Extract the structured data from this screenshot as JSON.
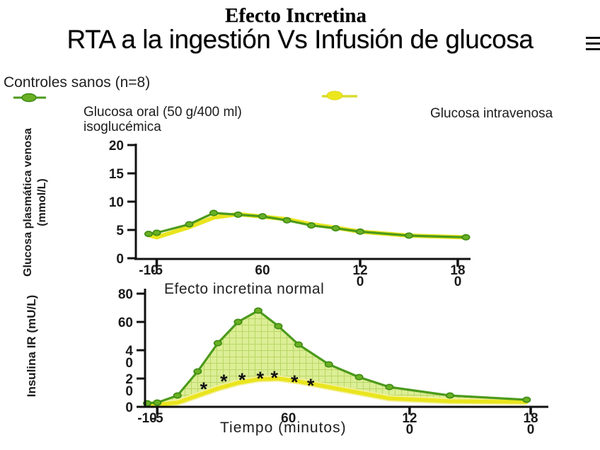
{
  "slide": {
    "title": "Efecto Incretina",
    "subtitle": "RTA a la ingestión Vs Infusión de glucosa",
    "legend": {
      "heading": "Controles sanos (n=8)",
      "oral_label_line1": "Glucosa oral (50 g/400 ml)",
      "oral_label_line2": "isoglucémica",
      "iv_label": "Glucosa intravenosa"
    },
    "annotation": "Efecto incretina normal",
    "x_axis_label": "Tiempo (minutos)"
  },
  "icons": {
    "subtitle_icon": "menu-icon"
  },
  "colors": {
    "oral_green_line": "#4c9a1c",
    "oral_green_marker": "#6ab024",
    "oral_green_marker_edge": "#3c8a12",
    "iv_yellow_line": "#e9e51e",
    "iv_yellow_glow": "#f4f19c",
    "area_fill": "#dcee96",
    "area_grid": "#b9d765",
    "axis": "#111111",
    "text": "#1a1a1a"
  },
  "chart_data": [
    {
      "id": "plasma-glucose",
      "type": "line",
      "ylabel_line1": "Glucosa plasmática venosa",
      "ylabel_line2": "(mmol/L)",
      "xlim": [
        -12,
        195
      ],
      "ylim": [
        0,
        20
      ],
      "x": [
        -10,
        -5,
        15,
        30,
        45,
        60,
        75,
        90,
        105,
        120,
        150,
        185
      ],
      "series": [
        {
          "name": "Glucosa oral (50 g/400 ml) isoglucémica",
          "color": "#4c9a1c",
          "marker": true,
          "values": [
            4.3,
            4.5,
            6.0,
            8.0,
            7.7,
            7.4,
            6.7,
            5.8,
            5.3,
            4.7,
            4.0,
            3.7
          ]
        },
        {
          "name": "Glucosa intravenosa",
          "color": "#e9e51e",
          "marker": false,
          "values": [
            4.1,
            3.7,
            5.5,
            7.2,
            7.8,
            7.35,
            6.9,
            6.0,
            5.4,
            4.7,
            4.0,
            3.7
          ]
        }
      ],
      "xticks": [
        {
          "t": -10,
          "lines": [
            "-10"
          ],
          "tick": false
        },
        {
          "t": -5,
          "lines": [
            "-5"
          ],
          "tick": true
        },
        {
          "t": 60,
          "lines": [
            "60"
          ],
          "tick": false
        },
        {
          "t": 120,
          "lines": [
            "12",
            "0"
          ],
          "tick": true
        },
        {
          "t": 180,
          "lines": [
            "18",
            "0"
          ],
          "tick": true
        }
      ],
      "yticks": [
        {
          "v": 20,
          "lines": [
            "20"
          ]
        },
        {
          "v": 15,
          "lines": [
            "15"
          ]
        },
        {
          "v": 10,
          "lines": [
            "10"
          ]
        },
        {
          "v": 5,
          "lines": [
            "5"
          ]
        },
        {
          "v": 0,
          "lines": [
            "0"
          ]
        }
      ]
    },
    {
      "id": "insulin",
      "type": "line",
      "ylabel_line1": "Insulina IR (mU/L)",
      "ylabel_line2": "",
      "xlim": [
        -12,
        195
      ],
      "ylim": [
        0,
        80
      ],
      "x": [
        -10,
        -5,
        5,
        15,
        25,
        35,
        45,
        55,
        65,
        80,
        95,
        110,
        140,
        178
      ],
      "series": [
        {
          "name": "Glucosa oral (50 g/400 ml) isoglucémica",
          "color": "#4c9a1c",
          "marker": true,
          "values": [
            2.5,
            3,
            8,
            25,
            45,
            60,
            68,
            57,
            44,
            30,
            21,
            14,
            8,
            5
          ]
        },
        {
          "name": "Glucosa intravenosa",
          "color": "#e9e51e",
          "marker": false,
          "values": [
            2,
            1.5,
            3,
            8,
            13,
            17,
            19.5,
            20,
            18,
            14,
            10,
            6,
            4,
            3.5
          ]
        }
      ],
      "area_between": {
        "fill": "#dcee96",
        "grid": "#b9d765"
      },
      "significance_symbol": "*",
      "significance": [
        {
          "t": 18,
          "v": 13
        },
        {
          "t": 28,
          "v": 18.5
        },
        {
          "t": 37,
          "v": 19.5
        },
        {
          "t": 46,
          "v": 20.5
        },
        {
          "t": 53,
          "v": 21
        },
        {
          "t": 63,
          "v": 18
        },
        {
          "t": 71,
          "v": 15.5
        }
      ],
      "xticks": [
        {
          "t": -10,
          "lines": [
            "-10"
          ],
          "tick": false
        },
        {
          "t": -5,
          "lines": [
            "-5"
          ],
          "tick": true
        },
        {
          "t": 60,
          "lines": [
            "60"
          ],
          "tick": false
        },
        {
          "t": 120,
          "lines": [
            "12",
            "0"
          ],
          "tick": true
        },
        {
          "t": 180,
          "lines": [
            "18",
            "0"
          ],
          "tick": true
        }
      ],
      "yticks": [
        {
          "v": 80,
          "lines": [
            "80"
          ]
        },
        {
          "v": 60,
          "lines": [
            "60"
          ]
        },
        {
          "v": 40,
          "lines": [
            "4",
            "0"
          ]
        },
        {
          "v": 20,
          "lines": [
            "2",
            "0"
          ]
        },
        {
          "v": 0,
          "lines": [
            "0"
          ]
        }
      ]
    }
  ]
}
